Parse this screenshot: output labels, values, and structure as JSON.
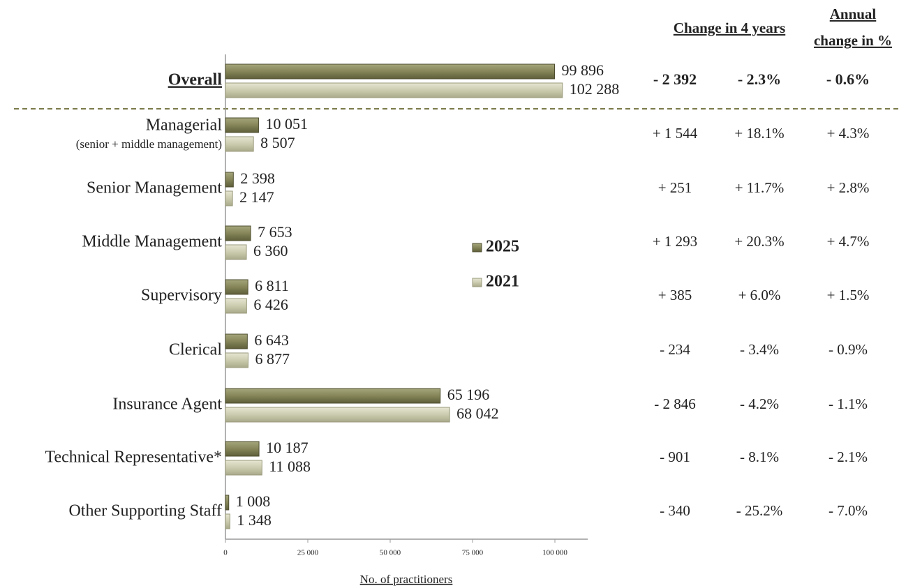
{
  "chart_data": {
    "type": "bar",
    "orientation": "horizontal",
    "categories": [
      "Overall",
      "Managerial",
      "Senior Management",
      "Middle Management",
      "Supervisory",
      "Clerical",
      "Insurance Agent",
      "Technical Representative*",
      "Other Supporting Staff"
    ],
    "category_sublabels": {
      "1": "(senior + middle management)"
    },
    "series": [
      {
        "name": "2025",
        "color": "#858559",
        "label_color": "#6e6e3c",
        "values": [
          99896,
          10051,
          2398,
          7653,
          6811,
          6643,
          65196,
          10187,
          1008
        ],
        "value_labels": [
          "99 896",
          "10 051",
          "2 398",
          "7 653",
          "6 811",
          "6 643",
          "65 196",
          "10 187",
          "1 008"
        ]
      },
      {
        "name": "2021",
        "color": "#cbcbaf",
        "label_color": "#8c8c1c",
        "values": [
          102288,
          8507,
          2147,
          6360,
          6426,
          6877,
          68042,
          11088,
          1348
        ],
        "value_labels": [
          "102 288",
          "8 507",
          "2 147",
          "6 360",
          "6 426",
          "6 877",
          "68 042",
          "11 088",
          "1 348"
        ]
      }
    ],
    "xlim": [
      0,
      110000
    ],
    "xticks": [
      0,
      {
        "value": 25000,
        "label": "25 000"
      },
      {
        "value": 50000,
        "label": "50 000"
      },
      {
        "value": 75000,
        "label": "75 000"
      },
      {
        "value": 100000,
        "label": "100 000"
      }
    ],
    "x_label": "No. of practitioners",
    "grid": false
  },
  "change_table": {
    "change_header": "Change in 4 years",
    "annual_header": [
      "Annual",
      "change in %"
    ],
    "rows": [
      [
        "- 2 392",
        "- 2.3%",
        "- 0.6%"
      ],
      [
        "+ 1 544",
        "+ 18.1%",
        "+ 4.3%"
      ],
      [
        "+ 251",
        "+ 11.7%",
        "+ 2.8%"
      ],
      [
        "+ 1 293",
        "+ 20.3%",
        "+ 4.7%"
      ],
      [
        "+ 385",
        "+ 6.0%",
        "+ 1.5%"
      ],
      [
        "- 234",
        "- 3.4%",
        "- 0.9%"
      ],
      [
        "- 2 846",
        "-  4.2%",
        "-  1.1%"
      ],
      [
        "- 901",
        "-  8.1%",
        "-  2.1%"
      ],
      [
        "- 340",
        "-  25.2%",
        "-  7.0%"
      ]
    ]
  }
}
